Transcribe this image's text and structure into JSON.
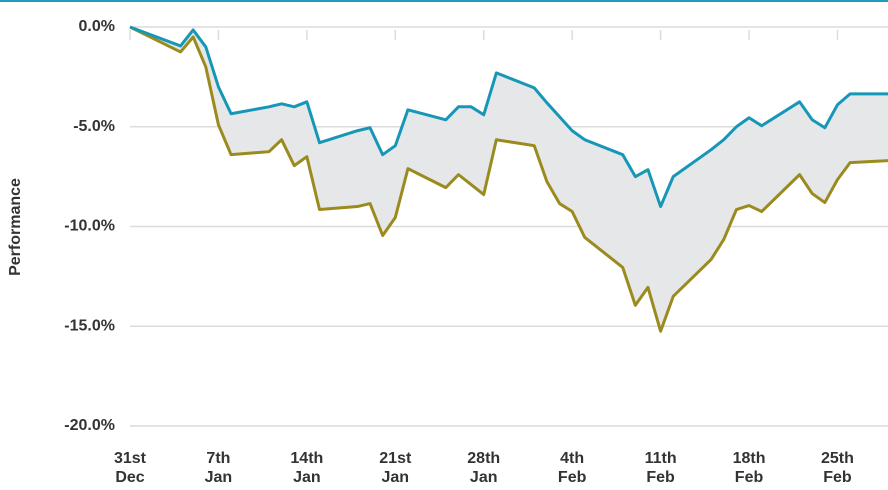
{
  "chart_data": {
    "type": "line",
    "y_label": "Performance",
    "x": [
      0,
      4,
      5,
      6,
      7,
      8,
      11,
      12,
      13,
      14,
      15,
      18,
      19,
      20,
      21,
      22,
      25,
      26,
      27,
      28,
      29,
      32,
      33,
      34,
      35,
      36,
      39,
      40,
      41,
      42,
      43,
      46,
      47,
      48,
      49,
      50,
      53,
      54,
      55,
      56,
      57,
      60
    ],
    "series": [
      {
        "color": "#1797b8",
        "values": [
          0,
          -0.95,
          -0.15,
          -1.0,
          -3.0,
          -4.35,
          -4.0,
          -3.85,
          -4.0,
          -3.75,
          -5.8,
          -5.2,
          -5.05,
          -6.4,
          -5.95,
          -4.15,
          -4.65,
          -4.0,
          -4.0,
          -4.4,
          -2.3,
          -3.05,
          -3.8,
          -4.5,
          -5.2,
          -5.65,
          -6.4,
          -7.5,
          -7.15,
          -9.0,
          -7.5,
          -6.15,
          -5.65,
          -5.0,
          -4.55,
          -4.95,
          -3.75,
          -4.65,
          -5.05,
          -3.9,
          -3.35,
          -3.35
        ]
      },
      {
        "color": "#9b8b1f",
        "values": [
          0,
          -1.25,
          -0.5,
          -2.0,
          -4.9,
          -6.4,
          -6.25,
          -5.65,
          -6.95,
          -6.5,
          -9.15,
          -9.0,
          -8.85,
          -10.45,
          -9.55,
          -7.1,
          -8.05,
          -7.4,
          -7.9,
          -8.4,
          -5.65,
          -5.95,
          -7.75,
          -8.85,
          -9.25,
          -10.55,
          -12.05,
          -13.95,
          -13.05,
          -15.25,
          -13.5,
          -11.65,
          -10.65,
          -9.15,
          -8.95,
          -9.25,
          -7.4,
          -8.35,
          -8.8,
          -7.65,
          -6.8,
          -6.7
        ]
      }
    ],
    "band_color": "#e6e7e8",
    "xlim": [
      0,
      60
    ],
    "xticks": [
      {
        "value": 0,
        "label": "31st Dec"
      },
      {
        "value": 7,
        "label": "7th Jan"
      },
      {
        "value": 14,
        "label": "14th Jan"
      },
      {
        "value": 21,
        "label": "21st Jan"
      },
      {
        "value": 28,
        "label": "28th Jan"
      },
      {
        "value": 35,
        "label": "4th Feb"
      },
      {
        "value": 42,
        "label": "11th Feb"
      },
      {
        "value": 49,
        "label": "18th Feb"
      },
      {
        "value": 56,
        "label": "25th Feb"
      }
    ],
    "ylim": [
      -20,
      0
    ],
    "yticks": [
      {
        "value": 0,
        "label": "0.0%"
      },
      {
        "value": -5,
        "label": "-5.0%"
      },
      {
        "value": -10,
        "label": "-10.0%"
      },
      {
        "value": -15,
        "label": "-15.0%"
      },
      {
        "value": -20,
        "label": "-20.0%"
      }
    ],
    "grid": true
  }
}
